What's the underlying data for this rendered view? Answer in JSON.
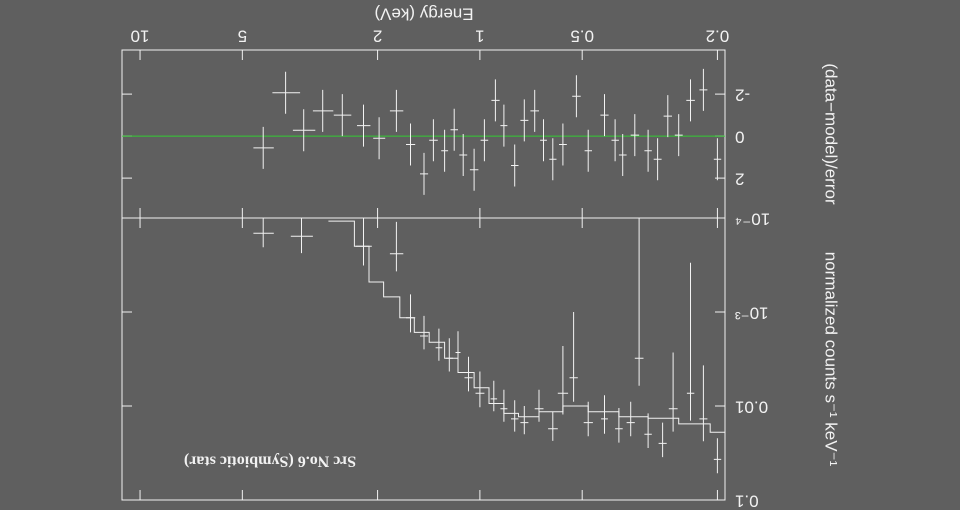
{
  "chart_data": [
    {
      "type": "errorbar",
      "ylabel": "normalized counts s⁻¹ keV⁻¹",
      "annotation": "Src No.6 (Symbiotic star)",
      "xlog": true,
      "ylog": true,
      "xlim": [
        0.19,
        11.3
      ],
      "ylim": [
        0.0001,
        0.1
      ],
      "yticks": [
        {
          "value": 0.0001,
          "label": "10⁻⁴"
        },
        {
          "value": 0.001,
          "label": "10⁻³"
        },
        0.01,
        0.1
      ],
      "color": "#f2f2f2",
      "x": [
        4.34,
        3.35,
        2.2,
        1.76,
        1.6,
        1.46,
        1.32,
        1.23,
        1.16,
        1.08,
        1.0,
        0.91,
        0.85,
        0.79,
        0.74,
        0.67,
        0.61,
        0.57,
        0.53,
        0.48,
        0.43,
        0.39,
        0.36,
        0.34,
        0.32,
        0.29,
        0.27,
        0.24,
        0.22,
        0.2
      ],
      "xerr": [
        0.3,
        0.25,
        0.12,
        0.08,
        0.05,
        0.04,
        0.03,
        0.03,
        0.02,
        0.03,
        0.03,
        0.02,
        0.02,
        0.02,
        0.02,
        0.02,
        0.02,
        0.02,
        0.015,
        0.015,
        0.01,
        0.01,
        0.01,
        0.01,
        0.008,
        0.008,
        0.008,
        0.006,
        0.006,
        0.005
      ],
      "values": [
        0.000145,
        0.000156,
        0.0002,
        0.00024,
        0.00115,
        0.0018,
        0.0024,
        0.0031,
        0.0027,
        0.005,
        0.0073,
        0.0084,
        0.0107,
        0.0137,
        0.015,
        0.0107,
        0.0175,
        0.0073,
        0.005,
        0.015,
        0.0137,
        0.0175,
        0.015,
        0.0031,
        0.02,
        0.025,
        0.0107,
        0.0073,
        0.0137,
        0.037
      ],
      "yerr": [
        6e-05,
        8e-05,
        0.00012,
        0.00013,
        0.0005,
        0.0007,
        0.0009,
        0.0012,
        0.0011,
        0.002,
        0.003,
        0.003,
        0.004,
        0.005,
        0.005,
        0.004,
        0.006,
        0.005,
        0.004,
        0.006,
        0.006,
        0.007,
        0.006,
        0.003,
        0.008,
        0.01,
        0.008,
        0.007,
        0.01,
        0.015
      ],
      "model": {
        "color": "#f2f2f2",
        "x": [
          2.79,
          2.34,
          2.12,
          1.92,
          1.72,
          1.56,
          1.41,
          1.27,
          1.16,
          1.04,
          0.94,
          0.85,
          0.77,
          0.67,
          0.57,
          0.48,
          0.39,
          0.32,
          0.26,
          0.21,
          0.19
        ],
        "values": [
          0.000108,
          0.0002,
          0.00048,
          0.00069,
          0.00115,
          0.00165,
          0.0021,
          0.0031,
          0.0044,
          0.0064,
          0.0094,
          0.012,
          0.013,
          0.0115,
          0.01,
          0.0115,
          0.013,
          0.0135,
          0.0155,
          0.019,
          0.02
        ]
      }
    },
    {
      "type": "errorbar",
      "ylabel": "(data−model)/error",
      "xlabel": "Energy (keV)",
      "xlog": true,
      "xlim": [
        0.19,
        11.3
      ],
      "ylim": [
        -4.1,
        3.9
      ],
      "xticks": [
        0.2,
        0.5,
        1,
        2,
        5,
        10
      ],
      "yticks": [
        -2,
        0,
        2
      ],
      "color": "#f2f2f2",
      "reference_line": {
        "value": 0,
        "color": "#33cc33"
      },
      "x": [
        4.34,
        3.73,
        3.3,
        2.9,
        2.54,
        2.2,
        1.98,
        1.76,
        1.6,
        1.46,
        1.37,
        1.27,
        1.19,
        1.12,
        1.04,
        0.97,
        0.9,
        0.85,
        0.79,
        0.74,
        0.69,
        0.65,
        0.61,
        0.57,
        0.52,
        0.48,
        0.43,
        0.4,
        0.38,
        0.35,
        0.32,
        0.3,
        0.28,
        0.26,
        0.24,
        0.22,
        0.2
      ],
      "xerr": [
        0.3,
        0.35,
        0.25,
        0.2,
        0.15,
        0.1,
        0.08,
        0.08,
        0.05,
        0.04,
        0.04,
        0.03,
        0.03,
        0.03,
        0.03,
        0.025,
        0.025,
        0.02,
        0.02,
        0.02,
        0.02,
        0.015,
        0.015,
        0.015,
        0.015,
        0.012,
        0.012,
        0.01,
        0.01,
        0.01,
        0.008,
        0.008,
        0.008,
        0.007,
        0.007,
        0.006,
        0.005
      ],
      "values": [
        0.56,
        -2.06,
        -0.28,
        -1.2,
        -1.0,
        -0.5,
        0.1,
        -1.2,
        0.4,
        1.8,
        0.2,
        0.7,
        -0.3,
        0.9,
        1.6,
        0.2,
        -1.7,
        -0.5,
        1.4,
        -0.75,
        -1.2,
        0.2,
        1.1,
        0.4,
        -1.9,
        0.7,
        -1.0,
        0.2,
        0.9,
        -0.05,
        0.7,
        1.1,
        -0.95,
        -0.05,
        -1.7,
        -2.2,
        1.1
      ],
      "yerr": [
        1,
        1,
        1,
        1,
        1,
        1,
        1,
        1,
        1,
        1,
        1,
        1,
        1,
        1,
        1,
        1,
        1,
        1,
        1,
        1,
        1,
        1,
        1,
        1,
        1,
        1,
        1,
        1,
        1,
        1,
        1,
        1,
        1,
        1,
        1,
        1,
        1
      ]
    }
  ]
}
